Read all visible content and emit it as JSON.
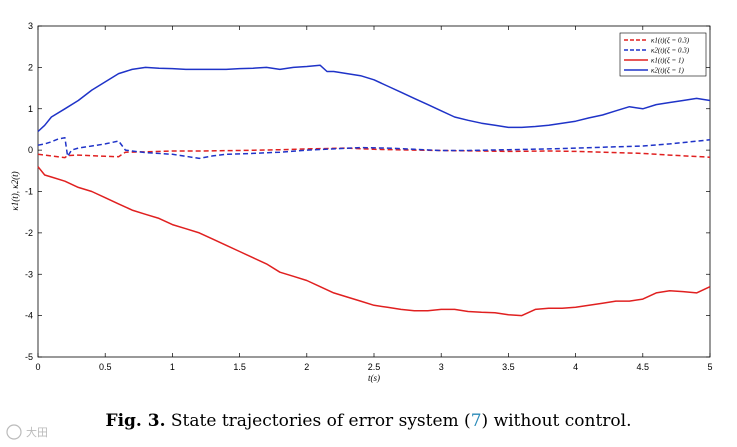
{
  "chart_data": {
    "type": "line",
    "title": "",
    "xlabel": "t(s)",
    "ylabel": "κ1(t), κ2(t)",
    "xlim": [
      0,
      5
    ],
    "ylim": [
      -5,
      3
    ],
    "xticks": [
      0,
      0.5,
      1,
      1.5,
      2,
      2.5,
      3,
      3.5,
      4,
      4.5,
      5
    ],
    "xtick_labels": [
      "0",
      "0.5",
      "1",
      "1.5",
      "2",
      "2.5",
      "3",
      "3.5",
      "4",
      "4.5",
      "5"
    ],
    "yticks": [
      -5,
      -4,
      -3,
      -2,
      -1,
      0,
      1,
      2,
      3
    ],
    "ytick_labels": [
      "-5",
      "-4",
      "-3",
      "-2",
      "-1",
      "0",
      "1",
      "2",
      "3"
    ],
    "grid": false,
    "legend_position": "top-right",
    "series": [
      {
        "name": "κ1(t)(ξ = 0.3)",
        "color": "#e02020",
        "style": "dashed",
        "x": [
          0,
          0.05,
          0.1,
          0.2,
          0.22,
          0.3,
          0.5,
          0.6,
          0.65,
          0.8,
          1.0,
          1.2,
          1.5,
          1.8,
          2.0,
          2.3,
          2.5,
          2.8,
          3.0,
          3.3,
          3.5,
          3.8,
          4.0,
          4.2,
          4.5,
          4.7,
          5.0
        ],
        "y": [
          -0.1,
          -0.12,
          -0.14,
          -0.18,
          -0.13,
          -0.12,
          -0.15,
          -0.16,
          -0.05,
          -0.04,
          -0.02,
          -0.02,
          -0.01,
          0.01,
          0.03,
          0.05,
          0.02,
          0.0,
          -0.01,
          -0.02,
          -0.03,
          -0.02,
          -0.03,
          -0.05,
          -0.08,
          -0.12,
          -0.17
        ]
      },
      {
        "name": "κ2(t)(ξ = 0.3)",
        "color": "#1f33c8",
        "style": "dashed",
        "x": [
          0,
          0.05,
          0.1,
          0.15,
          0.2,
          0.22,
          0.25,
          0.3,
          0.4,
          0.5,
          0.6,
          0.65,
          0.7,
          0.8,
          1.0,
          1.1,
          1.2,
          1.3,
          1.4,
          1.6,
          1.8,
          2.0,
          2.2,
          2.4,
          2.6,
          2.8,
          3.0,
          3.2,
          3.5,
          3.8,
          4.0,
          4.3,
          4.5,
          4.7,
          5.0
        ],
        "y": [
          0.12,
          0.15,
          0.2,
          0.27,
          0.3,
          -0.15,
          0.0,
          0.05,
          0.1,
          0.15,
          0.22,
          0.0,
          -0.02,
          -0.06,
          -0.1,
          -0.15,
          -0.2,
          -0.14,
          -0.1,
          -0.08,
          -0.05,
          0.0,
          0.03,
          0.06,
          0.05,
          0.02,
          -0.01,
          -0.01,
          0.01,
          0.03,
          0.05,
          0.08,
          0.1,
          0.15,
          0.25
        ]
      },
      {
        "name": "κ1(t)(ξ = 1)",
        "color": "#e02020",
        "style": "solid",
        "x": [
          0,
          0.05,
          0.1,
          0.2,
          0.3,
          0.4,
          0.5,
          0.6,
          0.7,
          0.8,
          0.9,
          1.0,
          1.1,
          1.2,
          1.3,
          1.4,
          1.5,
          1.6,
          1.7,
          1.8,
          1.9,
          2.0,
          2.1,
          2.2,
          2.3,
          2.4,
          2.5,
          2.6,
          2.7,
          2.8,
          2.9,
          3.0,
          3.1,
          3.2,
          3.3,
          3.4,
          3.5,
          3.6,
          3.7,
          3.8,
          3.9,
          4.0,
          4.1,
          4.2,
          4.3,
          4.4,
          4.5,
          4.6,
          4.7,
          4.8,
          4.9,
          5.0
        ],
        "y": [
          -0.4,
          -0.6,
          -0.65,
          -0.75,
          -0.9,
          -1.0,
          -1.15,
          -1.3,
          -1.45,
          -1.55,
          -1.65,
          -1.8,
          -1.9,
          -2.0,
          -2.15,
          -2.3,
          -2.45,
          -2.6,
          -2.75,
          -2.95,
          -3.05,
          -3.15,
          -3.3,
          -3.45,
          -3.55,
          -3.65,
          -3.75,
          -3.8,
          -3.85,
          -3.88,
          -3.88,
          -3.85,
          -3.85,
          -3.9,
          -3.92,
          -3.93,
          -3.98,
          -4.0,
          -3.85,
          -3.82,
          -3.82,
          -3.8,
          -3.75,
          -3.7,
          -3.65,
          -3.65,
          -3.6,
          -3.45,
          -3.4,
          -3.42,
          -3.45,
          -3.3
        ]
      },
      {
        "name": "κ2(t)(ξ = 1)",
        "color": "#1f33c8",
        "style": "solid",
        "x": [
          0,
          0.05,
          0.1,
          0.2,
          0.3,
          0.4,
          0.5,
          0.6,
          0.7,
          0.8,
          0.9,
          1.0,
          1.1,
          1.2,
          1.3,
          1.4,
          1.5,
          1.6,
          1.7,
          1.8,
          1.9,
          2.0,
          2.1,
          2.15,
          2.2,
          2.3,
          2.4,
          2.5,
          2.6,
          2.7,
          2.8,
          2.9,
          3.0,
          3.1,
          3.2,
          3.3,
          3.4,
          3.5,
          3.6,
          3.7,
          3.8,
          3.9,
          4.0,
          4.1,
          4.2,
          4.3,
          4.4,
          4.5,
          4.6,
          4.7,
          4.8,
          4.9,
          5.0
        ],
        "y": [
          0.45,
          0.6,
          0.8,
          1.0,
          1.2,
          1.45,
          1.65,
          1.85,
          1.95,
          2.0,
          1.98,
          1.97,
          1.95,
          1.95,
          1.95,
          1.95,
          1.97,
          1.98,
          2.0,
          1.95,
          2.0,
          2.02,
          2.05,
          1.9,
          1.9,
          1.85,
          1.8,
          1.7,
          1.55,
          1.4,
          1.25,
          1.1,
          0.95,
          0.8,
          0.72,
          0.65,
          0.6,
          0.55,
          0.55,
          0.57,
          0.6,
          0.65,
          0.7,
          0.78,
          0.85,
          0.95,
          1.05,
          1.0,
          1.1,
          1.15,
          1.2,
          1.25,
          1.2
        ]
      }
    ]
  },
  "caption": {
    "label": "Fig. 3.",
    "text_before": "State trajectories of error system (",
    "ref": "7",
    "text_after": ") without control."
  },
  "watermark": {
    "text": "大田"
  }
}
